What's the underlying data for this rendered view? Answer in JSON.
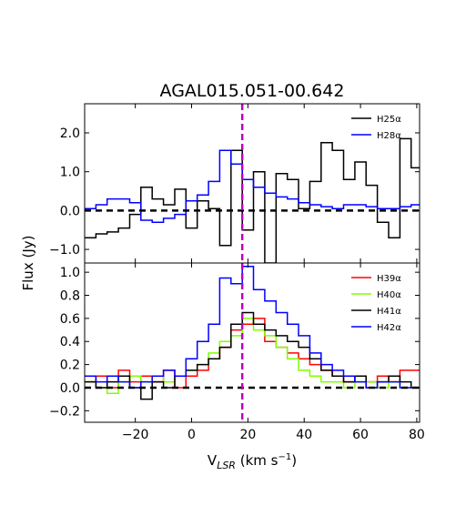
{
  "figure": {
    "title": "AGAL015.051-00.642",
    "xlabel_main": "V",
    "xlabel_sub": "LSR",
    "xlabel_units_pre": " (km s",
    "xlabel_units_sup": "−1",
    "xlabel_units_post": ")",
    "ylabel": "Flux (Jy)",
    "vline_x": 18,
    "vline_color": "#bf00bf"
  },
  "chart_data": [
    {
      "type": "line",
      "panel": "top",
      "title": "AGAL015.051-00.642",
      "xlim": [
        -38,
        81
      ],
      "ylim": [
        -1.35,
        2.75
      ],
      "xticks": [
        -20,
        0,
        20,
        40,
        60,
        80
      ],
      "yticks": [
        -1.0,
        0.0,
        1.0,
        2.0
      ],
      "ytick_labels": [
        "−1.0",
        "0.0",
        "1.0",
        "2.0"
      ],
      "hline": 0.0,
      "legend_position": "upper-right",
      "series": [
        {
          "name": "H25α",
          "color": "#000000",
          "step_edges": [
            -38,
            -34,
            -30,
            -26,
            -22,
            -18,
            -14,
            -10,
            -6,
            -2,
            2,
            6,
            10,
            14,
            18,
            22,
            26,
            30,
            34,
            38,
            42,
            46,
            50,
            54,
            58,
            62,
            66,
            70,
            74,
            78,
            81
          ],
          "values": [
            -0.7,
            -0.6,
            -0.55,
            -0.45,
            -0.1,
            0.6,
            0.3,
            0.15,
            0.55,
            -0.45,
            0.25,
            0.05,
            -0.9,
            1.55,
            -0.5,
            1.0,
            -1.35,
            0.95,
            0.8,
            0.05,
            0.75,
            1.75,
            1.55,
            0.8,
            1.25,
            0.65,
            -0.3,
            -0.7,
            1.85,
            1.1
          ]
        },
        {
          "name": "H28α",
          "color": "#0000ff",
          "step_edges": [
            -38,
            -34,
            -30,
            -26,
            -22,
            -18,
            -14,
            -10,
            -6,
            -2,
            2,
            6,
            10,
            14,
            18,
            22,
            26,
            30,
            34,
            38,
            42,
            46,
            50,
            54,
            58,
            62,
            66,
            70,
            74,
            78,
            81
          ],
          "values": [
            0.05,
            0.15,
            0.3,
            0.3,
            0.2,
            -0.25,
            -0.3,
            -0.2,
            -0.1,
            0.25,
            0.4,
            0.75,
            1.55,
            1.2,
            0.8,
            0.6,
            0.45,
            0.35,
            0.3,
            0.2,
            0.15,
            0.1,
            0.05,
            0.15,
            0.15,
            0.1,
            0.05,
            0.05,
            0.1,
            0.15
          ]
        }
      ]
    },
    {
      "type": "line",
      "panel": "bottom",
      "xlim": [
        -38,
        81
      ],
      "ylim": [
        -0.3,
        1.08
      ],
      "xticks": [
        -20,
        0,
        20,
        40,
        60,
        80
      ],
      "xtick_labels": [
        "−20",
        "0",
        "20",
        "40",
        "60",
        "80"
      ],
      "yticks": [
        -0.2,
        0.0,
        0.2,
        0.4,
        0.6,
        0.8,
        1.0
      ],
      "ytick_labels": [
        "−0.2",
        "0.0",
        "0.2",
        "0.4",
        "0.6",
        "0.8",
        "1.0"
      ],
      "hline": 0.0,
      "legend_position": "upper-right",
      "series": [
        {
          "name": "H39α",
          "color": "#ff0000",
          "step_edges": [
            -38,
            -34,
            -30,
            -26,
            -22,
            -18,
            -14,
            -10,
            -6,
            -2,
            2,
            6,
            10,
            14,
            18,
            22,
            26,
            30,
            34,
            38,
            42,
            46,
            50,
            54,
            58,
            62,
            66,
            70,
            74,
            78,
            81
          ],
          "values": [
            0.05,
            0.1,
            0.0,
            0.15,
            0.05,
            0.1,
            0.05,
            0.15,
            0.0,
            0.1,
            0.15,
            0.25,
            0.35,
            0.5,
            0.55,
            0.6,
            0.4,
            0.35,
            0.3,
            0.25,
            0.2,
            0.15,
            0.1,
            0.05,
            0.1,
            0.05,
            0.1,
            0.05,
            0.15,
            0.15
          ]
        },
        {
          "name": "H40α",
          "color": "#7fff00",
          "step_edges": [
            -38,
            -34,
            -30,
            -26,
            -22,
            -18,
            -14,
            -10,
            -6,
            -2,
            2,
            6,
            10,
            14,
            18,
            22,
            26,
            30,
            34,
            38,
            42,
            46,
            50,
            54,
            58,
            62,
            66,
            70,
            74,
            78,
            81
          ],
          "values": [
            0.05,
            0.0,
            -0.05,
            0.05,
            0.1,
            0.05,
            0.1,
            0.05,
            0.1,
            0.15,
            0.2,
            0.3,
            0.4,
            0.45,
            0.6,
            0.5,
            0.45,
            0.35,
            0.25,
            0.15,
            0.1,
            0.05,
            0.05,
            0.0,
            0.05,
            0.05,
            0.0,
            0.05,
            0.0,
            0.0
          ]
        },
        {
          "name": "H41α",
          "color": "#000000",
          "step_edges": [
            -38,
            -34,
            -30,
            -26,
            -22,
            -18,
            -14,
            -10,
            -6,
            -2,
            2,
            6,
            10,
            14,
            18,
            22,
            26,
            30,
            34,
            38,
            42,
            46,
            50,
            54,
            58,
            62,
            66,
            70,
            74,
            78,
            81
          ],
          "values": [
            0.05,
            0.0,
            0.05,
            0.1,
            0.0,
            -0.1,
            0.05,
            0.0,
            0.1,
            0.15,
            0.2,
            0.25,
            0.35,
            0.55,
            0.65,
            0.55,
            0.5,
            0.45,
            0.4,
            0.35,
            0.25,
            0.15,
            0.1,
            0.05,
            0.1,
            0.0,
            0.05,
            0.1,
            0.05,
            0.0
          ]
        },
        {
          "name": "H42α",
          "color": "#0000ff",
          "step_edges": [
            -38,
            -34,
            -30,
            -26,
            -22,
            -18,
            -14,
            -10,
            -6,
            -2,
            2,
            6,
            10,
            14,
            18,
            22,
            26,
            30,
            34,
            38,
            42,
            46,
            50,
            54,
            58,
            62,
            66,
            70,
            74,
            78,
            81
          ],
          "values": [
            0.1,
            0.05,
            0.1,
            0.05,
            0.0,
            0.05,
            0.1,
            0.15,
            0.1,
            0.25,
            0.4,
            0.55,
            0.95,
            0.9,
            1.05,
            0.85,
            0.75,
            0.65,
            0.55,
            0.45,
            0.3,
            0.2,
            0.15,
            0.1,
            0.05,
            0.0,
            0.05,
            0.05,
            0.0,
            0.0
          ]
        }
      ]
    }
  ]
}
